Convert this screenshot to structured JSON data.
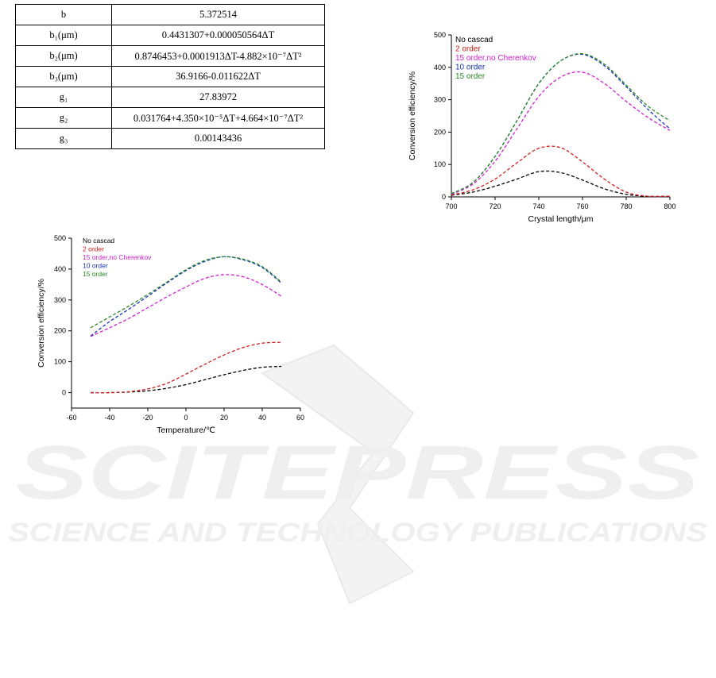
{
  "table": {
    "rows": [
      {
        "name": "b",
        "value": "5.372514"
      },
      {
        "name": "b₁(μm)",
        "value": "0.4431307+0.000050564ΔT"
      },
      {
        "name": "b₂(μm)",
        "value": "0.8746453+0.0001913ΔT-4.882×10⁻⁷ΔT²"
      },
      {
        "name": "b₃(μm)",
        "value": "36.9166-0.011622ΔT"
      },
      {
        "name": "g₁",
        "value": "27.83972"
      },
      {
        "name": "g₂",
        "value": "0.031764+4.350×10⁻⁵ΔT+4.664×10⁻⁷ΔT²"
      },
      {
        "name": "g₃",
        "value": "0.00143436"
      }
    ]
  },
  "watermark": {
    "title": "SCITEPRESS",
    "subtitle": "SCIENCE AND TECHNOLOGY PUBLICATIONS"
  },
  "chart_data": [
    {
      "type": "line",
      "xlabel": "Crystal length/μm",
      "ylabel": "Conversion efficiency/%",
      "xlim": [
        700,
        800
      ],
      "ylim": [
        0,
        500
      ],
      "xticks": [
        700,
        720,
        740,
        760,
        780,
        800
      ],
      "yticks": [
        0,
        100,
        200,
        300,
        400,
        500
      ],
      "grid": false,
      "legend_position": "top-left",
      "x": [
        700,
        710,
        720,
        730,
        740,
        750,
        760,
        770,
        780,
        790,
        800
      ],
      "series": [
        {
          "name": "No cascad",
          "color": "#000000",
          "values": [
            5,
            15,
            33,
            55,
            78,
            75,
            52,
            25,
            8,
            2,
            2
          ]
        },
        {
          "name": "2 order",
          "color": "#d02020",
          "values": [
            6,
            22,
            55,
            105,
            150,
            152,
            108,
            55,
            15,
            2,
            2
          ]
        },
        {
          "name": "15 order,no Cherenkov",
          "color": "#d020d0",
          "values": [
            8,
            40,
            110,
            210,
            310,
            370,
            385,
            350,
            295,
            245,
            205
          ]
        },
        {
          "name": "10 order",
          "color": "#1c33b8",
          "values": [
            10,
            45,
            125,
            235,
            350,
            420,
            440,
            405,
            340,
            270,
            210
          ]
        },
        {
          "name": "15 order",
          "color": "#2a8a2a",
          "values": [
            10,
            45,
            125,
            235,
            350,
            420,
            442,
            410,
            345,
            280,
            235
          ]
        }
      ]
    },
    {
      "type": "line",
      "xlabel": "Temperature/℃",
      "ylabel": "Conversion efficiency/%",
      "xlim": [
        -60,
        60
      ],
      "ylim": [
        -50,
        500
      ],
      "xticks": [
        -60,
        -40,
        -20,
        0,
        20,
        40,
        60
      ],
      "yticks": [
        0,
        100,
        200,
        300,
        400,
        500
      ],
      "grid": false,
      "legend_position": "top-left",
      "x": [
        -50,
        -40,
        -30,
        -20,
        -10,
        0,
        10,
        20,
        30,
        40,
        50
      ],
      "series": [
        {
          "name": "No cascad",
          "color": "#000000",
          "values": [
            0,
            0,
            2,
            6,
            14,
            26,
            42,
            58,
            72,
            82,
            85
          ]
        },
        {
          "name": "2 order",
          "color": "#d02020",
          "values": [
            0,
            0,
            3,
            12,
            30,
            60,
            92,
            122,
            146,
            160,
            163
          ]
        },
        {
          "name": "15 order,no Cherenkov",
          "color": "#d020d0",
          "values": [
            182,
            210,
            240,
            275,
            310,
            342,
            370,
            382,
            375,
            350,
            312
          ]
        },
        {
          "name": "10 order",
          "color": "#1c33b8",
          "values": [
            183,
            230,
            270,
            312,
            355,
            395,
            425,
            440,
            430,
            405,
            355
          ]
        },
        {
          "name": "15 order",
          "color": "#2a8a2a",
          "values": [
            210,
            245,
            280,
            318,
            358,
            398,
            428,
            440,
            432,
            408,
            358
          ]
        }
      ]
    }
  ]
}
